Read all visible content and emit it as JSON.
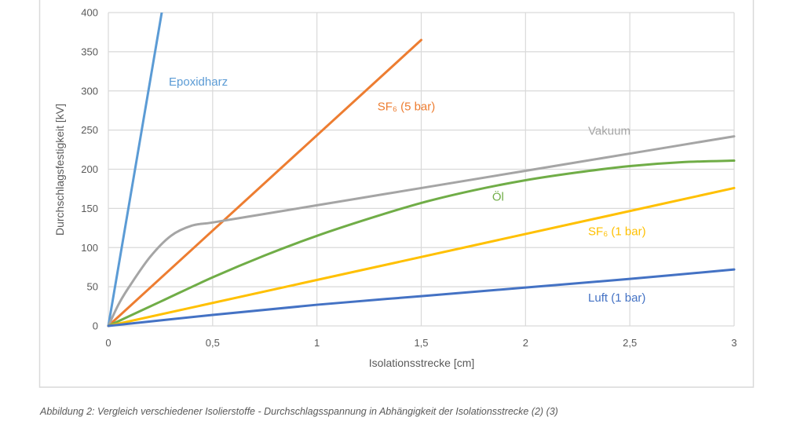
{
  "chart_data": {
    "type": "line",
    "xlabel": "Isolationsstrecke [cm]",
    "ylabel": "Durchschlagsfestigkeit [kV]",
    "xlim": [
      0,
      3
    ],
    "ylim": [
      0,
      400
    ],
    "x_ticks": [
      "0",
      "0,5",
      "1",
      "1,5",
      "2",
      "2,5",
      "3"
    ],
    "x_tick_values": [
      0,
      0.5,
      1,
      1.5,
      2,
      2.5,
      3
    ],
    "y_ticks": [
      "0",
      "50",
      "100",
      "150",
      "200",
      "250",
      "300",
      "350",
      "400"
    ],
    "y_tick_values": [
      0,
      50,
      100,
      150,
      200,
      250,
      300,
      350,
      400
    ],
    "grid": true,
    "legend": "inline labels",
    "series": [
      {
        "name": "Epoxidharz",
        "color": "#5b9bd5",
        "points": [
          [
            0,
            0
          ],
          [
            0.256,
            400
          ]
        ],
        "label_at": [
          0.29,
          307
        ]
      },
      {
        "name": "SF₆ (5 bar)",
        "color": "#ed7d31",
        "points": [
          [
            0,
            0
          ],
          [
            1.5,
            365
          ]
        ],
        "label_at": [
          1.29,
          275
        ]
      },
      {
        "name": "Vakuum",
        "color": "#a5a5a5",
        "points": [
          [
            0,
            0
          ],
          [
            0.05,
            28
          ],
          [
            0.1,
            50
          ],
          [
            0.2,
            88
          ],
          [
            0.3,
            115
          ],
          [
            0.4,
            128
          ],
          [
            0.5,
            132
          ],
          [
            0.75,
            143
          ],
          [
            1,
            154
          ],
          [
            1.5,
            176
          ],
          [
            2,
            198
          ],
          [
            2.5,
            220
          ],
          [
            3,
            242
          ]
        ],
        "label_at": [
          2.3,
          244
        ]
      },
      {
        "name": "Öl",
        "color": "#70ad47",
        "points": [
          [
            0,
            0
          ],
          [
            0.25,
            31
          ],
          [
            0.5,
            62
          ],
          [
            0.75,
            90
          ],
          [
            1,
            115
          ],
          [
            1.25,
            137
          ],
          [
            1.5,
            157
          ],
          [
            1.75,
            173
          ],
          [
            2,
            186
          ],
          [
            2.25,
            196
          ],
          [
            2.5,
            204
          ],
          [
            2.75,
            209
          ],
          [
            3,
            211
          ]
        ],
        "label_at": [
          1.84,
          160
        ]
      },
      {
        "name": "SF₆ (1 bar)",
        "color": "#ffc000",
        "points": [
          [
            0,
            0
          ],
          [
            3,
            176
          ]
        ],
        "label_at": [
          2.3,
          116
        ]
      },
      {
        "name": "Luft (1 bar)",
        "color": "#4472c4",
        "points": [
          [
            0,
            0
          ],
          [
            0.5,
            14
          ],
          [
            1,
            27
          ],
          [
            1.5,
            38
          ],
          [
            2,
            49
          ],
          [
            2.5,
            60
          ],
          [
            3,
            72
          ]
        ],
        "label_at": [
          2.3,
          31
        ]
      }
    ]
  },
  "caption": "Abbildung 2: Vergleich verschiedener Isolierstoffe - Durchschlagsspannung in Abhängigkeit der Isolationsstrecke (2) (3)"
}
